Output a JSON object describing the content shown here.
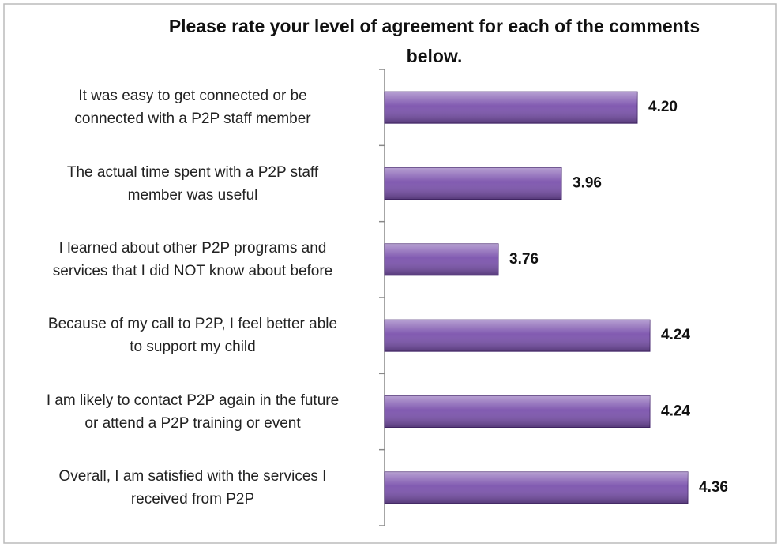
{
  "chart_data": {
    "type": "hbar",
    "title": "Please rate your level of agreement for each of the comments\nbelow.",
    "categories": [
      "It was easy to get connected or be\nconnected with a P2P staff member",
      "The actual time spent with a P2P staff\nmember was useful",
      "I learned about other P2P programs and\nservices that I did NOT know about before",
      "Because of my call to P2P, I feel better able\nto support my child",
      "I am likely to contact P2P again in the future\nor attend a P2P training or event",
      "Overall, I am satisfied with the services I\nreceived from P2P"
    ],
    "values": [
      4.2,
      3.96,
      3.76,
      4.24,
      4.24,
      4.36
    ],
    "value_labels": [
      "4.20",
      "3.96",
      "3.76",
      "4.24",
      "4.24",
      "4.36"
    ],
    "color": "#7b52ad",
    "xlim": [
      3.4,
      4.6
    ]
  }
}
